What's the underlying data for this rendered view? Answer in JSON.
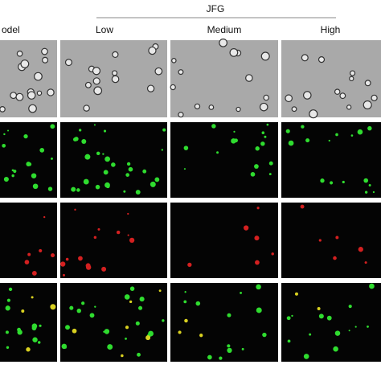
{
  "header": {
    "group_label": "JFG",
    "columns": [
      "odel",
      "Low",
      "Medium",
      "High"
    ]
  }
}
